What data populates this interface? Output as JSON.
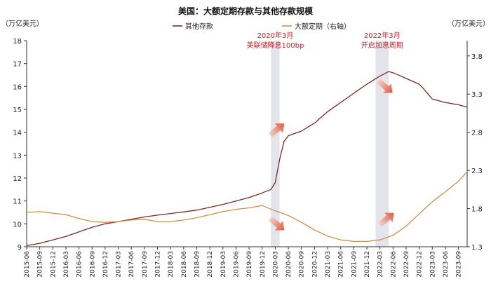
{
  "chart_data": {
    "type": "line",
    "title": "美国：大额定期存款与其他存款规模",
    "y_left_unit": "（万亿美元）",
    "y_right_unit": "（万亿美元）",
    "ylim_left": [
      9,
      18
    ],
    "ylim_right": [
      1.3,
      4.0
    ],
    "y_left_ticks": [
      9,
      10,
      11,
      12,
      13,
      14,
      15,
      16,
      17,
      18
    ],
    "y_right_ticks": [
      1.3,
      1.8,
      2.3,
      2.8,
      3.3,
      3.8
    ],
    "x_tick_labels": [
      "2015-06",
      "2015-09",
      "2015-12",
      "2016-03",
      "2016-06",
      "2016-09",
      "2016-12",
      "2017-03",
      "2017-06",
      "2017-09",
      "2017-12",
      "2018-03",
      "2018-06",
      "2018-09",
      "2018-12",
      "2019-03",
      "2019-06",
      "2019-09",
      "2019-12",
      "2020-03",
      "2020-06",
      "2020-09",
      "2020-12",
      "2021-03",
      "2021-06",
      "2021-09",
      "2021-12",
      "2022-03",
      "2022-06",
      "2022-09",
      "2022-12",
      "2023-03",
      "2023-06",
      "2023-09"
    ],
    "x_range": [
      "2015-06",
      "2023-11"
    ],
    "series": [
      {
        "name": "其他存款",
        "axis": "left",
        "color": "#7b2a24",
        "points": [
          [
            "2015-06",
            9.05
          ],
          [
            "2015-09",
            9.15
          ],
          [
            "2015-12",
            9.3
          ],
          [
            "2016-03",
            9.45
          ],
          [
            "2016-06",
            9.65
          ],
          [
            "2016-09",
            9.85
          ],
          [
            "2016-12",
            10.0
          ],
          [
            "2017-03",
            10.1
          ],
          [
            "2017-06",
            10.2
          ],
          [
            "2017-09",
            10.3
          ],
          [
            "2017-12",
            10.38
          ],
          [
            "2018-03",
            10.45
          ],
          [
            "2018-06",
            10.52
          ],
          [
            "2018-09",
            10.6
          ],
          [
            "2018-12",
            10.72
          ],
          [
            "2019-03",
            10.85
          ],
          [
            "2019-06",
            11.0
          ],
          [
            "2019-09",
            11.15
          ],
          [
            "2019-12",
            11.35
          ],
          [
            "2020-02",
            11.5
          ],
          [
            "2020-03",
            11.8
          ],
          [
            "2020-04",
            12.8
          ],
          [
            "2020-05",
            13.6
          ],
          [
            "2020-06",
            13.85
          ],
          [
            "2020-09",
            14.05
          ],
          [
            "2020-12",
            14.4
          ],
          [
            "2021-03",
            14.9
          ],
          [
            "2021-06",
            15.3
          ],
          [
            "2021-09",
            15.7
          ],
          [
            "2021-12",
            16.1
          ],
          [
            "2022-03",
            16.45
          ],
          [
            "2022-05",
            16.65
          ],
          [
            "2022-06",
            16.6
          ],
          [
            "2022-09",
            16.35
          ],
          [
            "2022-12",
            16.1
          ],
          [
            "2023-01",
            15.9
          ],
          [
            "2023-03",
            15.45
          ],
          [
            "2023-06",
            15.3
          ],
          [
            "2023-09",
            15.2
          ],
          [
            "2023-11",
            15.1
          ]
        ]
      },
      {
        "name": "大额定期（右轴）",
        "axis": "right",
        "color": "#c8924a",
        "points": [
          [
            "2015-06",
            1.75
          ],
          [
            "2015-09",
            1.76
          ],
          [
            "2015-12",
            1.74
          ],
          [
            "2016-03",
            1.72
          ],
          [
            "2016-06",
            1.67
          ],
          [
            "2016-09",
            1.63
          ],
          [
            "2016-12",
            1.62
          ],
          [
            "2017-03",
            1.63
          ],
          [
            "2017-06",
            1.65
          ],
          [
            "2017-09",
            1.66
          ],
          [
            "2017-12",
            1.63
          ],
          [
            "2018-03",
            1.63
          ],
          [
            "2018-06",
            1.65
          ],
          [
            "2018-09",
            1.68
          ],
          [
            "2018-12",
            1.72
          ],
          [
            "2019-03",
            1.76
          ],
          [
            "2019-06",
            1.79
          ],
          [
            "2019-09",
            1.81
          ],
          [
            "2019-12",
            1.84
          ],
          [
            "2020-03",
            1.77
          ],
          [
            "2020-06",
            1.71
          ],
          [
            "2020-09",
            1.62
          ],
          [
            "2020-12",
            1.52
          ],
          [
            "2021-03",
            1.44
          ],
          [
            "2021-06",
            1.39
          ],
          [
            "2021-09",
            1.37
          ],
          [
            "2021-12",
            1.37
          ],
          [
            "2022-03",
            1.39
          ],
          [
            "2022-06",
            1.45
          ],
          [
            "2022-09",
            1.57
          ],
          [
            "2022-12",
            1.73
          ],
          [
            "2023-03",
            1.89
          ],
          [
            "2023-06",
            2.02
          ],
          [
            "2023-09",
            2.16
          ],
          [
            "2023-11",
            2.28
          ]
        ]
      }
    ],
    "shaded_periods": [
      {
        "start": "2020-02",
        "end": "2020-04",
        "label_line1": "2020年3月",
        "label_line2": "美联储降息100bp"
      },
      {
        "start": "2022-02",
        "end": "2022-05",
        "label_line1": "2022年3月",
        "label_line2": "开启加息周期"
      }
    ]
  }
}
